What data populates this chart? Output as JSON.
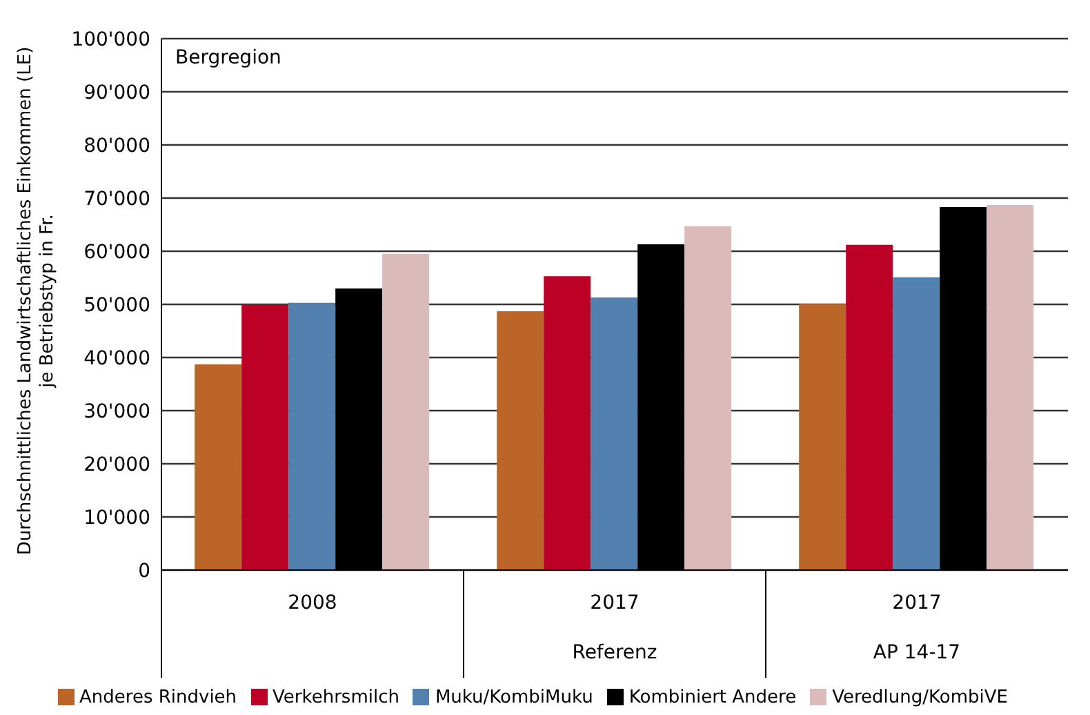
{
  "chart_data": {
    "type": "bar",
    "title": "Bergregion",
    "ylabel": "Durchschnittliches Landwirtschaftliches Einkommen (LE)\nje Betriebstyp in Fr.",
    "categories": [
      "2008",
      "2017\nReferenz",
      "2017\nAP 14-17"
    ],
    "series": [
      {
        "name": "Anderes Rindvieh",
        "color": "#bc6529",
        "values": [
          38700,
          48700,
          50100
        ]
      },
      {
        "name": "Verkehrsmilch",
        "color": "#bd0026",
        "values": [
          50000,
          55300,
          61200
        ]
      },
      {
        "name": "Muku/KombiMuku",
        "color": "#5281b0",
        "values": [
          50300,
          51300,
          55100
        ]
      },
      {
        "name": "Kombiniert Andere",
        "color": "#000000",
        "values": [
          53000,
          61300,
          68300
        ]
      },
      {
        "name": "Veredlung/KombiVE",
        "color": "#dbbabb",
        "values": [
          59500,
          64700,
          68700
        ]
      }
    ],
    "ylim": [
      0,
      100000
    ],
    "yticks": [
      {
        "value": 0,
        "label": "0"
      },
      {
        "value": 10000,
        "label": "10'000"
      },
      {
        "value": 20000,
        "label": "20'000"
      },
      {
        "value": 30000,
        "label": "30'000"
      },
      {
        "value": 40000,
        "label": "40'000"
      },
      {
        "value": 50000,
        "label": "50'000"
      },
      {
        "value": 60000,
        "label": "60'000"
      },
      {
        "value": 70000,
        "label": "70'000"
      },
      {
        "value": 80000,
        "label": "80'000"
      },
      {
        "value": 90000,
        "label": "90'000"
      },
      {
        "value": 100000,
        "label": "100'000"
      }
    ],
    "grid": "y",
    "legend": "bottom"
  }
}
